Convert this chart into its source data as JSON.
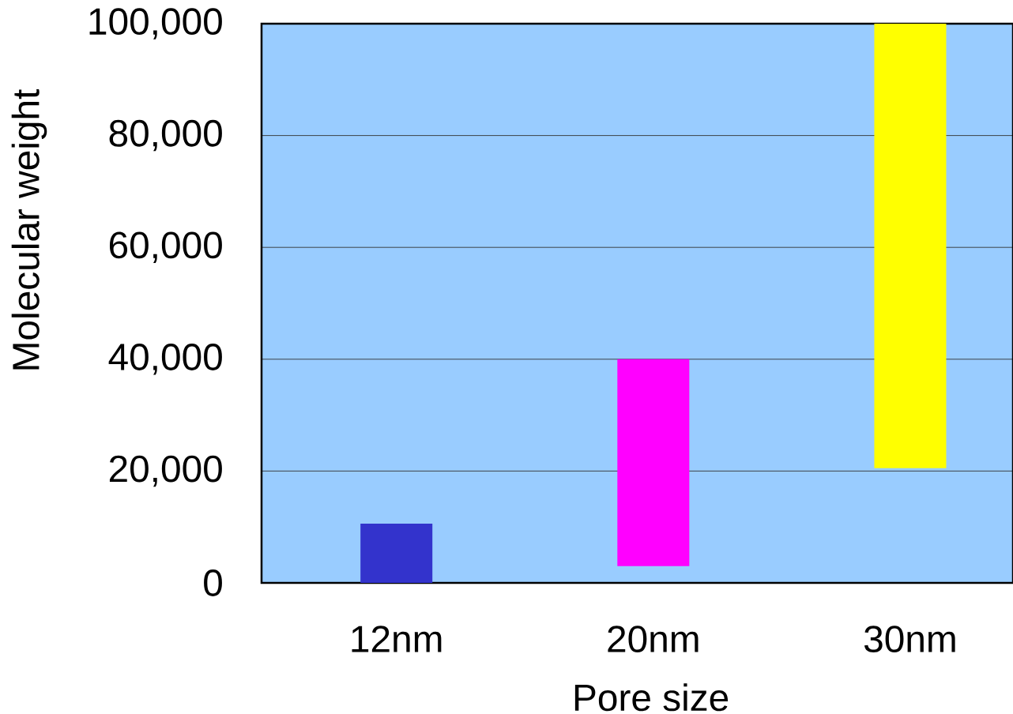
{
  "chart_data": {
    "type": "bar",
    "xlabel": "Pore size",
    "ylabel": "Molecular weight",
    "categories": [
      "12nm",
      "20nm",
      "30nm"
    ],
    "base": [
      0,
      3000,
      20500
    ],
    "values": [
      10600,
      37000,
      79500
    ],
    "colors": [
      "#3333cc",
      "#ff00ff",
      "#ffff00"
    ],
    "ylim": [
      0,
      100000
    ],
    "yticks": [
      0,
      {
        "value": 20000,
        "label": "20,000"
      },
      {
        "value": 40000,
        "label": "40,000"
      },
      {
        "value": 60000,
        "label": "60,000"
      },
      {
        "value": 80000,
        "label": "80,000"
      },
      {
        "value": 100000,
        "label": "100,000"
      }
    ],
    "grid": "y"
  }
}
